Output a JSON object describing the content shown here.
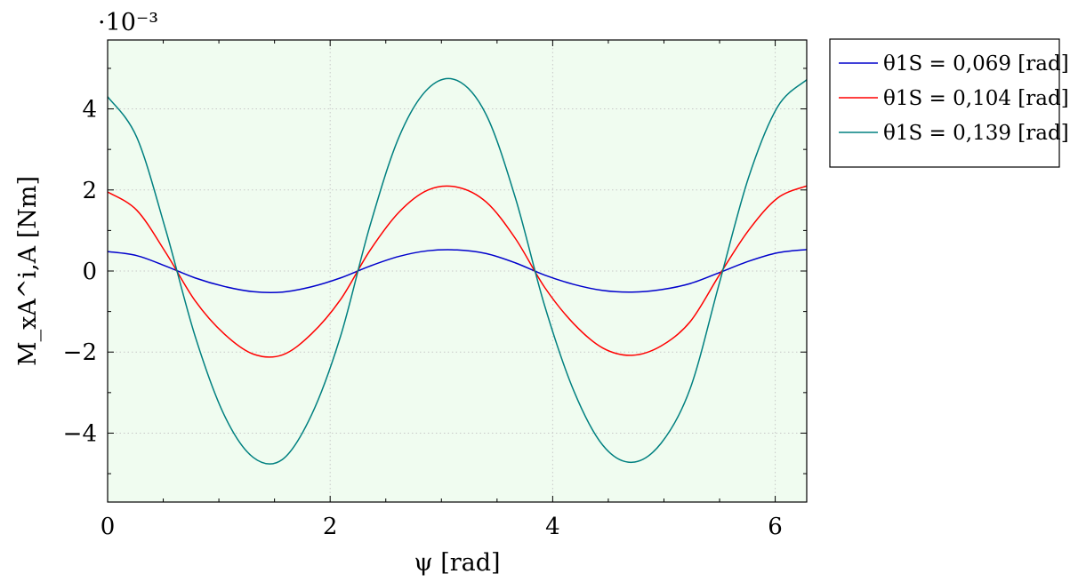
{
  "chart_data": {
    "type": "line",
    "xlabel": "ψ [rad]",
    "ylabel": "M_xA^i,A [Nm]",
    "scale_label": "·10⁻³",
    "xlim": [
      0,
      6.2832
    ],
    "ylim": [
      -5.7,
      5.7
    ],
    "x_ticks": [
      0,
      2,
      4,
      6
    ],
    "x_tick_labels": [
      "0",
      "2",
      "4",
      "6"
    ],
    "y_ticks": [
      -4,
      -2,
      0,
      2,
      4
    ],
    "y_tick_labels": [
      "−4",
      "−2",
      "0",
      "2",
      "4"
    ],
    "grid": true,
    "legend_position": "outside-right",
    "background_color": "#f0fcf0",
    "series": [
      {
        "name": "θ1S = 0,069 [rad]",
        "color": "#0000cc",
        "x": [
          0,
          0.2618,
          0.5236,
          0.7854,
          1.0472,
          1.309,
          1.5708,
          1.8326,
          2.0944,
          2.3562,
          2.618,
          2.8798,
          3.1416,
          3.4034,
          3.6652,
          3.927,
          4.1888,
          4.4506,
          4.7124,
          4.9742,
          5.236,
          5.4978,
          5.7596,
          6.0214,
          6.2832
        ],
        "y": [
          0.48,
          0.38,
          0.12,
          -0.17,
          -0.38,
          -0.51,
          -0.52,
          -0.39,
          -0.17,
          0.12,
          0.36,
          0.5,
          0.52,
          0.43,
          0.2,
          -0.1,
          -0.33,
          -0.48,
          -0.52,
          -0.46,
          -0.31,
          -0.04,
          0.24,
          0.45,
          0.53
        ]
      },
      {
        "name": "θ1S = 0,104 [rad]",
        "color": "#ff0000",
        "x": [
          0,
          0.2618,
          0.5236,
          0.7854,
          1.0472,
          1.309,
          1.5708,
          1.8326,
          2.0944,
          2.3562,
          2.618,
          2.8798,
          3.1416,
          3.4034,
          3.6652,
          3.927,
          4.1888,
          4.4506,
          4.7124,
          4.9742,
          5.236,
          5.4978,
          5.7596,
          6.0214,
          6.2832
        ],
        "y": [
          1.95,
          1.5,
          0.45,
          -0.73,
          -1.55,
          -2.05,
          -2.07,
          -1.55,
          -0.7,
          0.5,
          1.45,
          2.0,
          2.07,
          1.7,
          0.8,
          -0.4,
          -1.3,
          -1.9,
          -2.08,
          -1.85,
          -1.25,
          -0.1,
          1.0,
          1.8,
          2.1
        ]
      },
      {
        "name": "θ1S = 0,139 [rad]",
        "color": "#008080",
        "x": [
          0,
          0.2618,
          0.5236,
          0.7854,
          1.0472,
          1.309,
          1.5708,
          1.8326,
          2.0944,
          2.3562,
          2.618,
          2.8798,
          3.1416,
          3.4034,
          3.6652,
          3.927,
          4.1888,
          4.4506,
          4.7124,
          4.9742,
          5.236,
          5.4978,
          5.7596,
          6.0214,
          6.2832
        ],
        "y": [
          4.3,
          3.3,
          1.0,
          -1.6,
          -3.55,
          -4.6,
          -4.65,
          -3.55,
          -1.6,
          1.1,
          3.3,
          4.5,
          4.7,
          3.85,
          1.8,
          -0.85,
          -2.95,
          -4.3,
          -4.72,
          -4.25,
          -2.9,
          -0.3,
          2.3,
          4.05,
          4.72
        ]
      }
    ]
  }
}
